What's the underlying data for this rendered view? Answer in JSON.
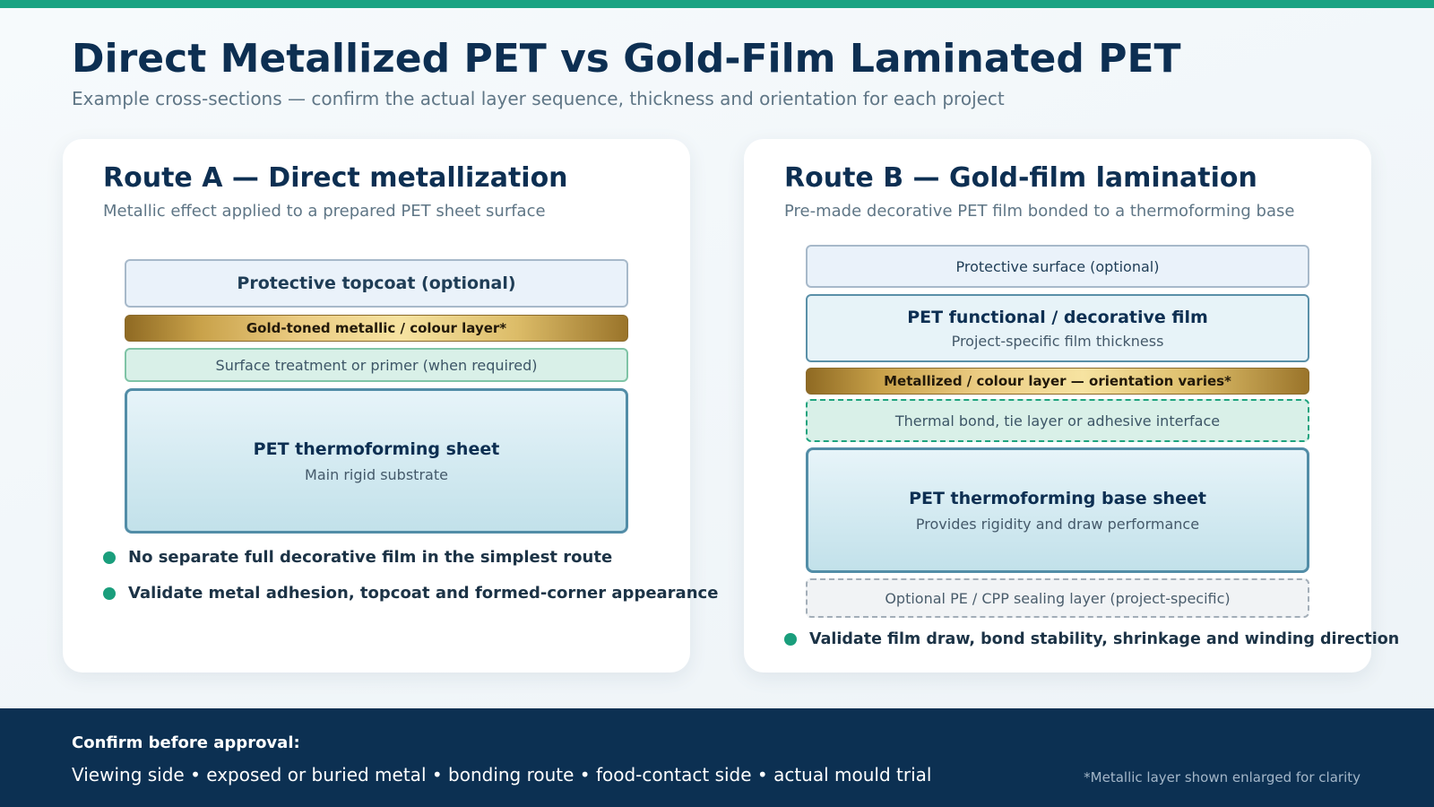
{
  "header": {
    "title": "Direct Metallized PET vs Gold-Film Laminated PET",
    "subtitle": "Example cross-sections — confirm the actual layer sequence, thickness and orientation for each project"
  },
  "route_a": {
    "title": "Route A — Direct metallization",
    "subtitle": "Metallic effect applied to a prepared PET sheet surface",
    "layers": [
      {
        "label": "Protective topcoat (optional)"
      },
      {
        "label": "Gold-toned metallic / colour layer*"
      },
      {
        "label": "Surface treatment or primer (when required)"
      },
      {
        "label": "PET thermoforming sheet",
        "note": "Main rigid substrate"
      }
    ],
    "bullets": [
      "No separate full decorative film in the simplest route",
      "Validate metal adhesion, topcoat and formed-corner appearance"
    ]
  },
  "route_b": {
    "title": "Route B — Gold-film lamination",
    "subtitle": "Pre-made decorative PET film bonded to a thermoforming base",
    "layers": [
      {
        "label": "Protective surface (optional)"
      },
      {
        "label": "PET functional / decorative film",
        "note": "Project-specific film thickness"
      },
      {
        "label": "Metallized / colour layer — orientation varies*"
      },
      {
        "label": "Thermal bond, tie layer or adhesive interface"
      },
      {
        "label": "PET thermoforming base sheet",
        "note": "Provides rigidity and draw performance"
      },
      {
        "label": "Optional PE / CPP sealing layer (project-specific)"
      }
    ],
    "bullets": [
      "Validate film draw, bond stability, shrinkage and winding direction"
    ]
  },
  "footer": {
    "heading": "Confirm before approval:",
    "items": "Viewing side • exposed or buried metal • bonding route • food-contact side • actual mould trial",
    "note": "*Metallic layer shown enlarged for clarity"
  },
  "colors": {
    "accent": "#1ba383",
    "navy": "#0c3052",
    "gold": "#c9a24a",
    "bullet": "#1a9e7c"
  }
}
